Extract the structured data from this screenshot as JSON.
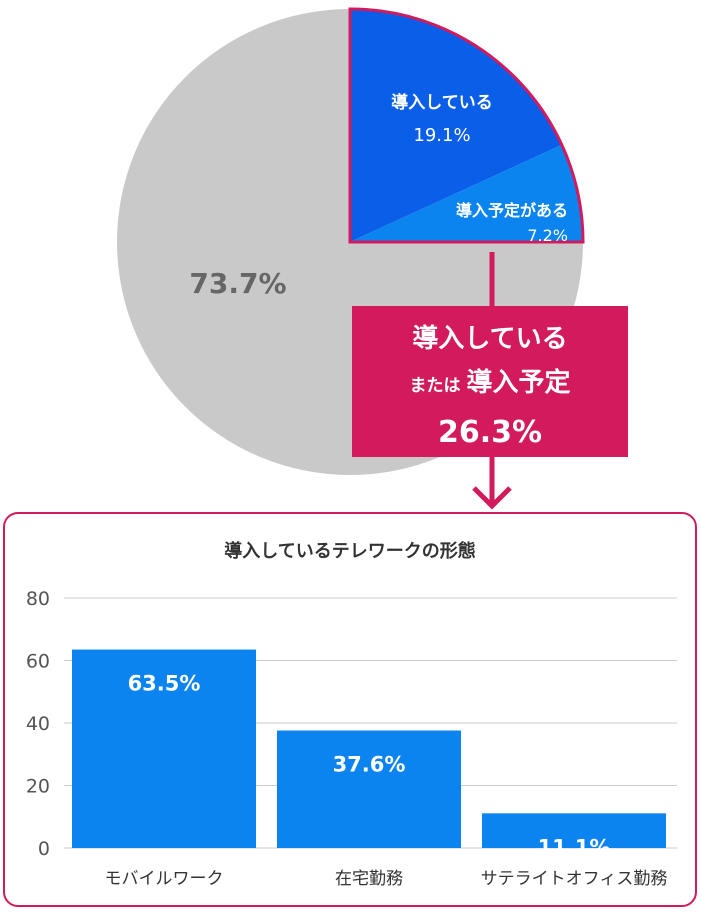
{
  "colors": {
    "dark_blue": "#0a5ee8",
    "light_blue": "#0b84ef",
    "gray": "#c9c9c9",
    "magenta": "#d21a5c",
    "grid": "#cccccc",
    "axis_text": "#555555",
    "label_text": "#333333"
  },
  "callout": {
    "line1": "導入している",
    "line2_small": "または",
    "line2_big": "導入予定",
    "value": "26.3%"
  },
  "chart_data": [
    {
      "type": "pie",
      "slices": [
        {
          "label": "導入している",
          "value": 19.1,
          "value_label": "19.1%"
        },
        {
          "label": "導入予定がある",
          "value": 7.2,
          "value_label": "7.2%"
        },
        {
          "label": "",
          "value": 73.7,
          "value_label": "73.7%"
        }
      ]
    },
    {
      "type": "bar",
      "title": "導入しているテレワークの形態",
      "categories": [
        "モバイルワーク",
        "在宅勤務",
        "サテライトオフィス勤務"
      ],
      "values": [
        63.5,
        37.6,
        11.1
      ],
      "value_labels": [
        "63.5%",
        "37.6%",
        "11.1%"
      ],
      "ylim": [
        0,
        80
      ],
      "yticks": [
        "0",
        "20",
        "40",
        "60",
        "80"
      ],
      "grid": true
    }
  ]
}
